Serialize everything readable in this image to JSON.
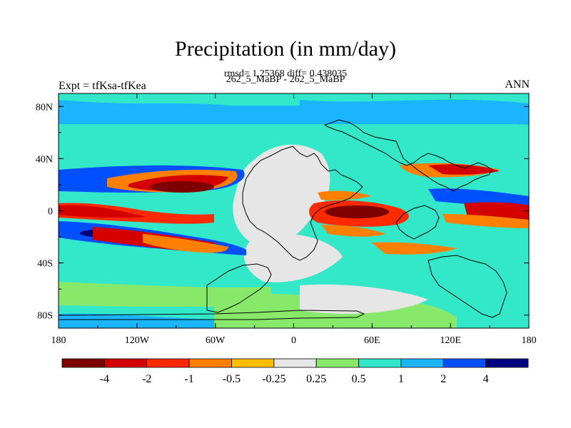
{
  "chart_data": {
    "type": "heatmap",
    "title": "Precipitation (in mm/day)",
    "subtitle_stats": "rmsd= 1.25368 diff= 0.438035",
    "subtitle_runs": "262_5_MaBP - 262_5_MaBP",
    "left_label": "Expt = tfKsa-tfKea",
    "right_label": "ANN",
    "xlabel": "",
    "ylabel": "",
    "x_ticks": [
      "180",
      "120W",
      "60W",
      "0",
      "60E",
      "120E",
      "180"
    ],
    "y_ticks": [
      "80N",
      "40N",
      "0",
      "40S",
      "80S"
    ],
    "lon_range": [
      -180,
      180
    ],
    "lat_range": [
      -90,
      90
    ],
    "colorbar_levels": [
      "-4",
      "-2",
      "-1",
      "-0.5",
      "-0.25",
      "0.25",
      "0.5",
      "1",
      "2",
      "4"
    ],
    "colorbar_colors": [
      "#7f0000",
      "#d40000",
      "#ff2a00",
      "#ff7f00",
      "#ffbf00",
      "#e6e6e6",
      "#88e86a",
      "#33e8c8",
      "#1ab4ff",
      "#0050ff",
      "#000080"
    ],
    "grid": false,
    "legend_position": "bottom"
  }
}
